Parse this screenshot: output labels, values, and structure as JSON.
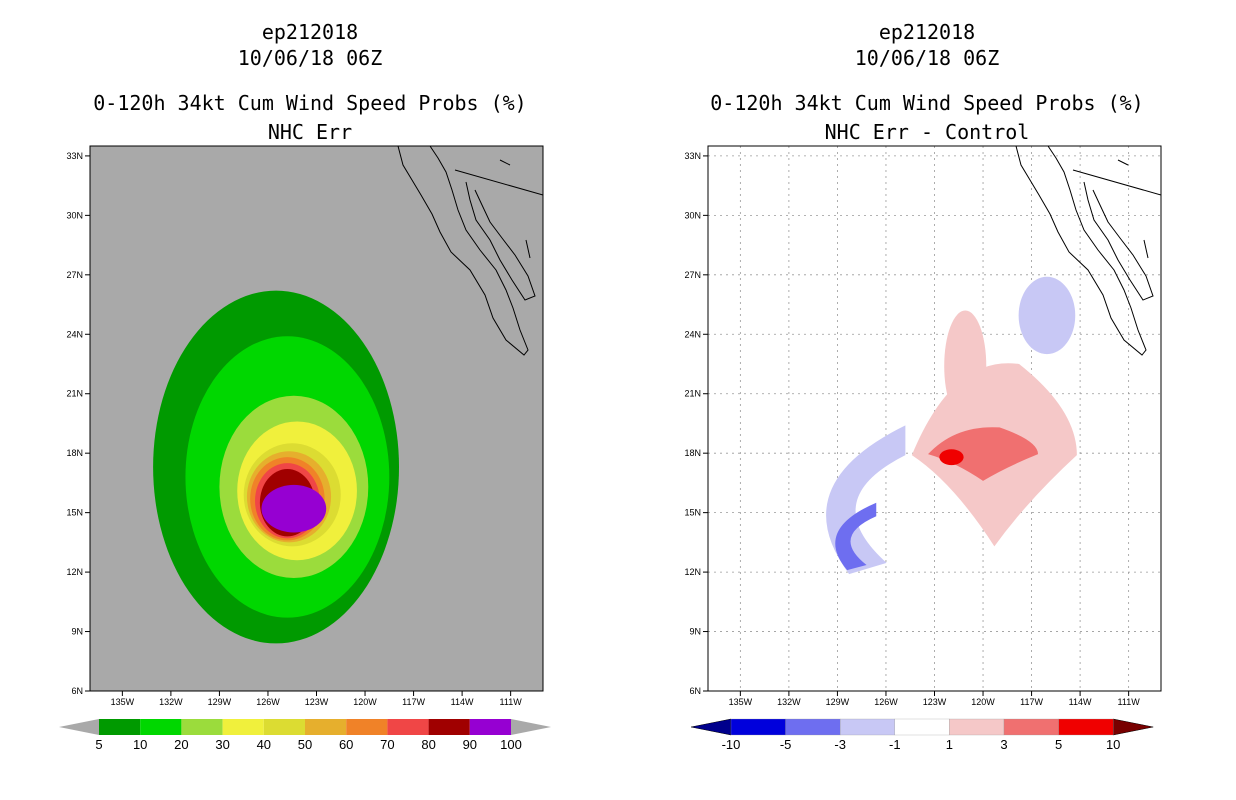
{
  "chart_data": [
    {
      "type": "heatmap",
      "storm_id": "ep212018",
      "datetime": "10/06/18 06Z",
      "title": "0-120h 34kt Cum Wind Speed Probs (%)",
      "subtitle": "NHC Err",
      "xlim": [
        -137,
        -109
      ],
      "ylim": [
        6,
        33.5
      ],
      "x_ticks": [
        "135W",
        "132W",
        "129W",
        "126W",
        "123W",
        "120W",
        "117W",
        "114W",
        "111W"
      ],
      "y_ticks": [
        "6N",
        "9N",
        "12N",
        "15N",
        "18N",
        "21N",
        "24N",
        "27N",
        "30N",
        "33N"
      ],
      "grid": false,
      "background_color": "#a9a9a9",
      "colorbar": {
        "labels": [
          "5",
          "10",
          "20",
          "30",
          "40",
          "50",
          "60",
          "70",
          "80",
          "90",
          "100"
        ],
        "colors": [
          "#009a00",
          "#00d700",
          "#9bdc3c",
          "#f0f03c",
          "#dcdc32",
          "#e6af2d",
          "#f08228",
          "#f04646",
          "#a00000",
          "#9600d2"
        ],
        "over_color": "#a9a9a9",
        "under_color": "#a9a9a9"
      },
      "contours": [
        {
          "level": "5-10",
          "color": "#009a00",
          "center": [
            -125.5,
            17.3
          ],
          "rx": 7.6,
          "ry": 8.9
        },
        {
          "level": "10-20",
          "color": "#00d700",
          "center": [
            -124.8,
            16.8
          ],
          "rx": 6.3,
          "ry": 7.1
        },
        {
          "level": "20-30",
          "color": "#9bdc3c",
          "center": [
            -124.4,
            16.3
          ],
          "rx": 4.6,
          "ry": 4.6
        },
        {
          "level": "30-40",
          "color": "#f0f03c",
          "center": [
            -124.2,
            16.1
          ],
          "rx": 3.7,
          "ry": 3.5
        },
        {
          "level": "40-50",
          "color": "#dcdc32",
          "center": [
            -124.5,
            15.9
          ],
          "rx": 3.0,
          "ry": 2.6
        },
        {
          "level": "50-60",
          "color": "#e6af2d",
          "center": [
            -124.7,
            15.8
          ],
          "rx": 2.6,
          "ry": 2.3
        },
        {
          "level": "60-70",
          "color": "#f08228",
          "center": [
            -124.8,
            15.7
          ],
          "rx": 2.3,
          "ry": 2.1
        },
        {
          "level": "70-80",
          "color": "#f04646",
          "center": [
            -124.8,
            15.6
          ],
          "rx": 2.0,
          "ry": 1.9
        },
        {
          "level": "80-90",
          "color": "#a00000",
          "center": [
            -124.8,
            15.5
          ],
          "rx": 1.7,
          "ry": 1.7
        },
        {
          "level": "90-100",
          "color": "#9600d2",
          "center": [
            -124.4,
            15.2
          ],
          "rx": 2.0,
          "ry": 1.2
        }
      ]
    },
    {
      "type": "heatmap",
      "storm_id": "ep212018",
      "datetime": "10/06/18 06Z",
      "title": "0-120h 34kt Cum Wind Speed Probs (%)",
      "subtitle": "NHC Err - Control",
      "xlim": [
        -137,
        -109
      ],
      "ylim": [
        6,
        33.5
      ],
      "x_ticks": [
        "135W",
        "132W",
        "129W",
        "126W",
        "123W",
        "120W",
        "117W",
        "114W",
        "111W"
      ],
      "y_ticks": [
        "6N",
        "9N",
        "12N",
        "15N",
        "18N",
        "21N",
        "24N",
        "27N",
        "30N",
        "33N"
      ],
      "grid": true,
      "background_color": "#ffffff",
      "colorbar": {
        "labels": [
          "-10",
          "-5",
          "-3",
          "-1",
          "1",
          "3",
          "5",
          "10"
        ],
        "colors": [
          "#0000dc",
          "#6e6ef0",
          "#c8c8f5",
          "#ffffff",
          "#f5c8c8",
          "#f07070",
          "#f00000"
        ],
        "under_color": "#00008c",
        "over_color": "#780000"
      },
      "contours": [
        {
          "level": "-1 to -3",
          "color": "#c8c8f5",
          "shape": "arc-west",
          "lon_range": [
            -130.6,
            -124.8
          ],
          "lat_range": [
            11.9,
            19.4
          ]
        },
        {
          "level": "-3 to -5",
          "color": "#6e6ef0",
          "shape": "arc-west",
          "lon_range": [
            -129.6,
            -126.6
          ],
          "lat_range": [
            12.1,
            15.5
          ]
        },
        {
          "level": "-1 to -3",
          "color": "#c8c8f5",
          "shape": "blob-northeast",
          "lon_range": [
            -117.8,
            -114.3
          ],
          "lat_range": [
            23.0,
            26.9
          ]
        },
        {
          "level": "1 to 3",
          "color": "#f5c8c8",
          "shape": "band",
          "lon_range": [
            -124.4,
            -114.2
          ],
          "lat_range": [
            13.3,
            22.5
          ]
        },
        {
          "level": "1 to 3",
          "color": "#f5c8c8",
          "shape": "plume-north",
          "lon_range": [
            -122.4,
            -119.8
          ],
          "lat_range": [
            19.6,
            25.2
          ]
        },
        {
          "level": "3 to 5",
          "color": "#f07070",
          "shape": "band",
          "lon_range": [
            -123.4,
            -116.6
          ],
          "lat_range": [
            16.6,
            19.3
          ]
        },
        {
          "level": "5 to 10",
          "color": "#f00000",
          "shape": "spot",
          "lon_range": [
            -122.7,
            -121.2
          ],
          "lat_range": [
            17.4,
            18.2
          ]
        }
      ]
    }
  ]
}
